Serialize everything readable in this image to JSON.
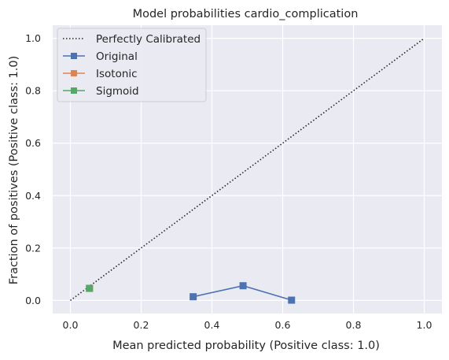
{
  "chart_data": {
    "type": "line",
    "title": "Model probabilities cardio_complication",
    "xlabel": "Mean predicted probability (Positive class: 1.0)",
    "ylabel": "Fraction of positives (Positive class: 1.0)",
    "xlim": [
      -0.05,
      1.05
    ],
    "ylim": [
      -0.05,
      1.05
    ],
    "xticks": [
      0.0,
      0.2,
      0.4,
      0.6,
      0.8,
      1.0
    ],
    "yticks": [
      0.0,
      0.2,
      0.4,
      0.6,
      0.8,
      1.0
    ],
    "xtick_labels": [
      "0.0",
      "0.2",
      "0.4",
      "0.6",
      "0.8",
      "1.0"
    ],
    "ytick_labels": [
      "0.0",
      "0.2",
      "0.4",
      "0.6",
      "0.8",
      "1.0"
    ],
    "grid": true,
    "legend_position": "top-left",
    "reference_line": {
      "name": "Perfectly Calibrated",
      "x": [
        0.0,
        1.0
      ],
      "y": [
        0.0,
        1.0
      ],
      "color": "#262626",
      "style": "dotted"
    },
    "series": [
      {
        "name": "Original",
        "color": "#4c72b0",
        "marker": "square",
        "x": [
          0.347,
          0.488,
          0.625
        ],
        "y": [
          0.014,
          0.056,
          0.001
        ]
      },
      {
        "name": "Isotonic",
        "color": "#dd8452",
        "marker": "square",
        "x": [
          0.054
        ],
        "y": [
          0.046
        ]
      },
      {
        "name": "Sigmoid",
        "color": "#55a868",
        "marker": "square",
        "x": [
          0.054
        ],
        "y": [
          0.046
        ]
      }
    ]
  }
}
